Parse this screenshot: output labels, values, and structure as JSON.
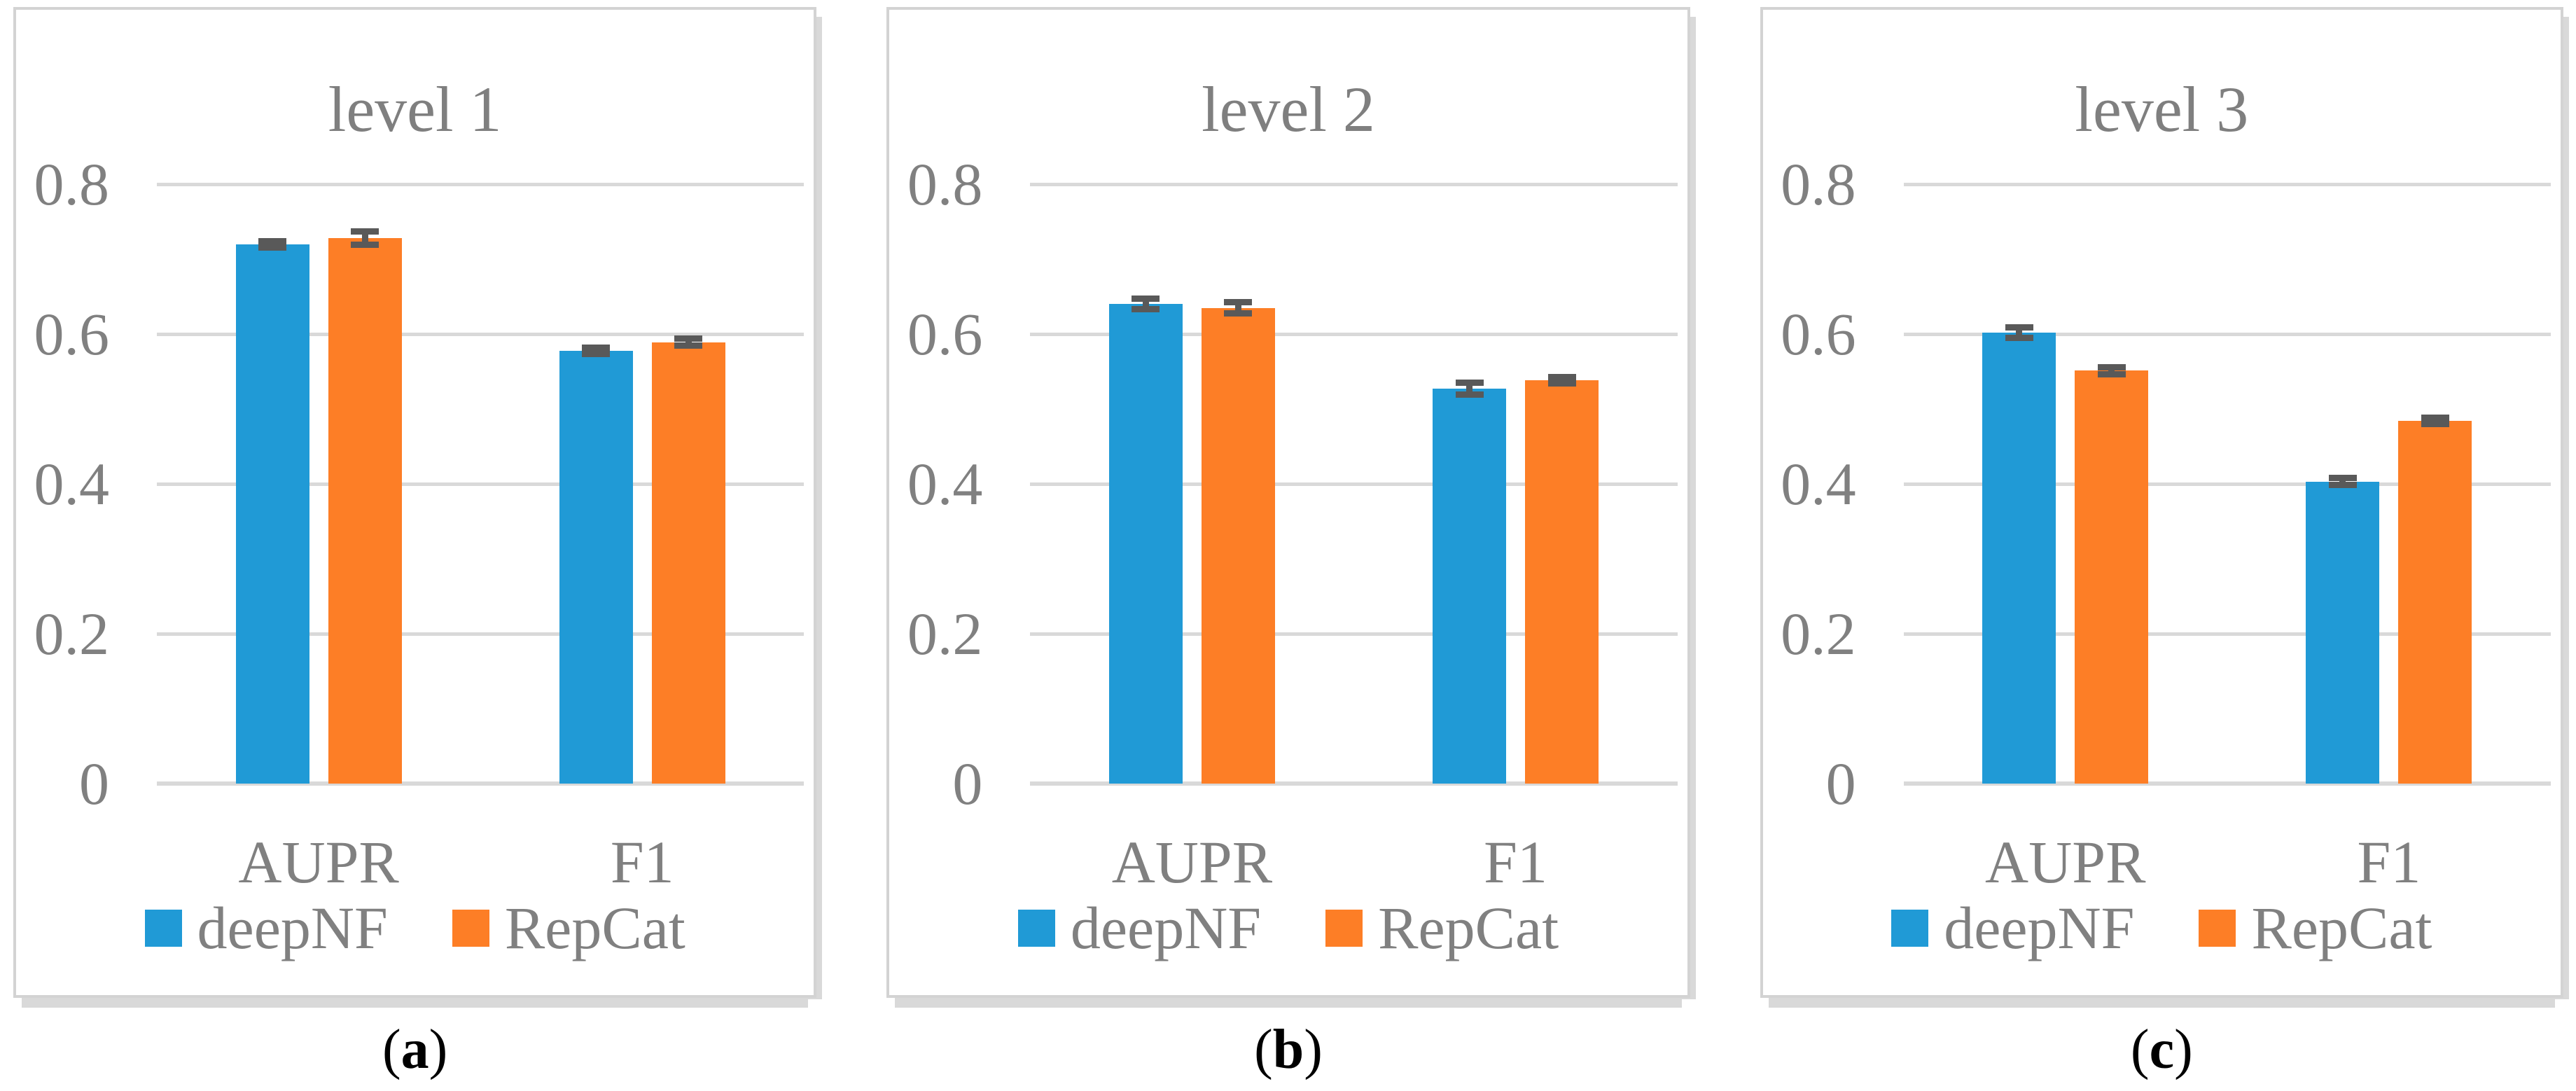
{
  "style": {
    "grid_color": "#D9D9D9",
    "axis_text_color": "#808080",
    "title_color": "#7F7F7F",
    "error_bar_color": "#595959",
    "panel_border_color": "#D3D3D3",
    "series_colors": {
      "deepNF": "#209AD6",
      "RepCat": "#FD7E26"
    }
  },
  "chart_data": [
    {
      "type": "bar",
      "title": "level 1",
      "caption": {
        "open": "(",
        "letter": "a",
        "close": ")"
      },
      "categories": [
        "AUPR",
        "F1"
      ],
      "series": [
        {
          "name": "deepNF",
          "color": "#209AD6",
          "values": [
            0.72,
            0.578
          ],
          "errors": [
            0.006,
            0.005
          ]
        },
        {
          "name": "RepCat",
          "color": "#FD7E26",
          "values": [
            0.728,
            0.589
          ],
          "errors": [
            0.013,
            0.009
          ]
        }
      ],
      "ylim": [
        0,
        0.8
      ],
      "yticks": [
        "0",
        "0.2",
        "0.4",
        "0.6",
        "0.8"
      ],
      "grid": true,
      "legend_position": "bottom"
    },
    {
      "type": "bar",
      "title": "level 2",
      "caption": {
        "open": "(",
        "letter": "b",
        "close": ")"
      },
      "categories": [
        "AUPR",
        "F1"
      ],
      "series": [
        {
          "name": "deepNF",
          "color": "#209AD6",
          "values": [
            0.64,
            0.527
          ],
          "errors": [
            0.011,
            0.012
          ]
        },
        {
          "name": "RepCat",
          "color": "#FD7E26",
          "values": [
            0.635,
            0.538
          ],
          "errors": [
            0.012,
            0.008
          ]
        }
      ],
      "ylim": [
        0,
        0.8
      ],
      "yticks": [
        "0",
        "0.2",
        "0.4",
        "0.6",
        "0.8"
      ],
      "grid": true,
      "legend_position": "bottom"
    },
    {
      "type": "bar",
      "title": "level 3",
      "caption": {
        "open": "(",
        "letter": "c",
        "close": ")"
      },
      "categories": [
        "AUPR",
        "F1"
      ],
      "series": [
        {
          "name": "deepNF",
          "color": "#209AD6",
          "values": [
            0.602,
            0.403
          ],
          "errors": [
            0.011,
            0.009
          ]
        },
        {
          "name": "RepCat",
          "color": "#FD7E26",
          "values": [
            0.551,
            0.484
          ],
          "errors": [
            0.009,
            0.008
          ]
        }
      ],
      "ylim": [
        0,
        0.8
      ],
      "yticks": [
        "0",
        "0.2",
        "0.4",
        "0.6",
        "0.8"
      ],
      "grid": true,
      "legend_position": "bottom"
    }
  ]
}
